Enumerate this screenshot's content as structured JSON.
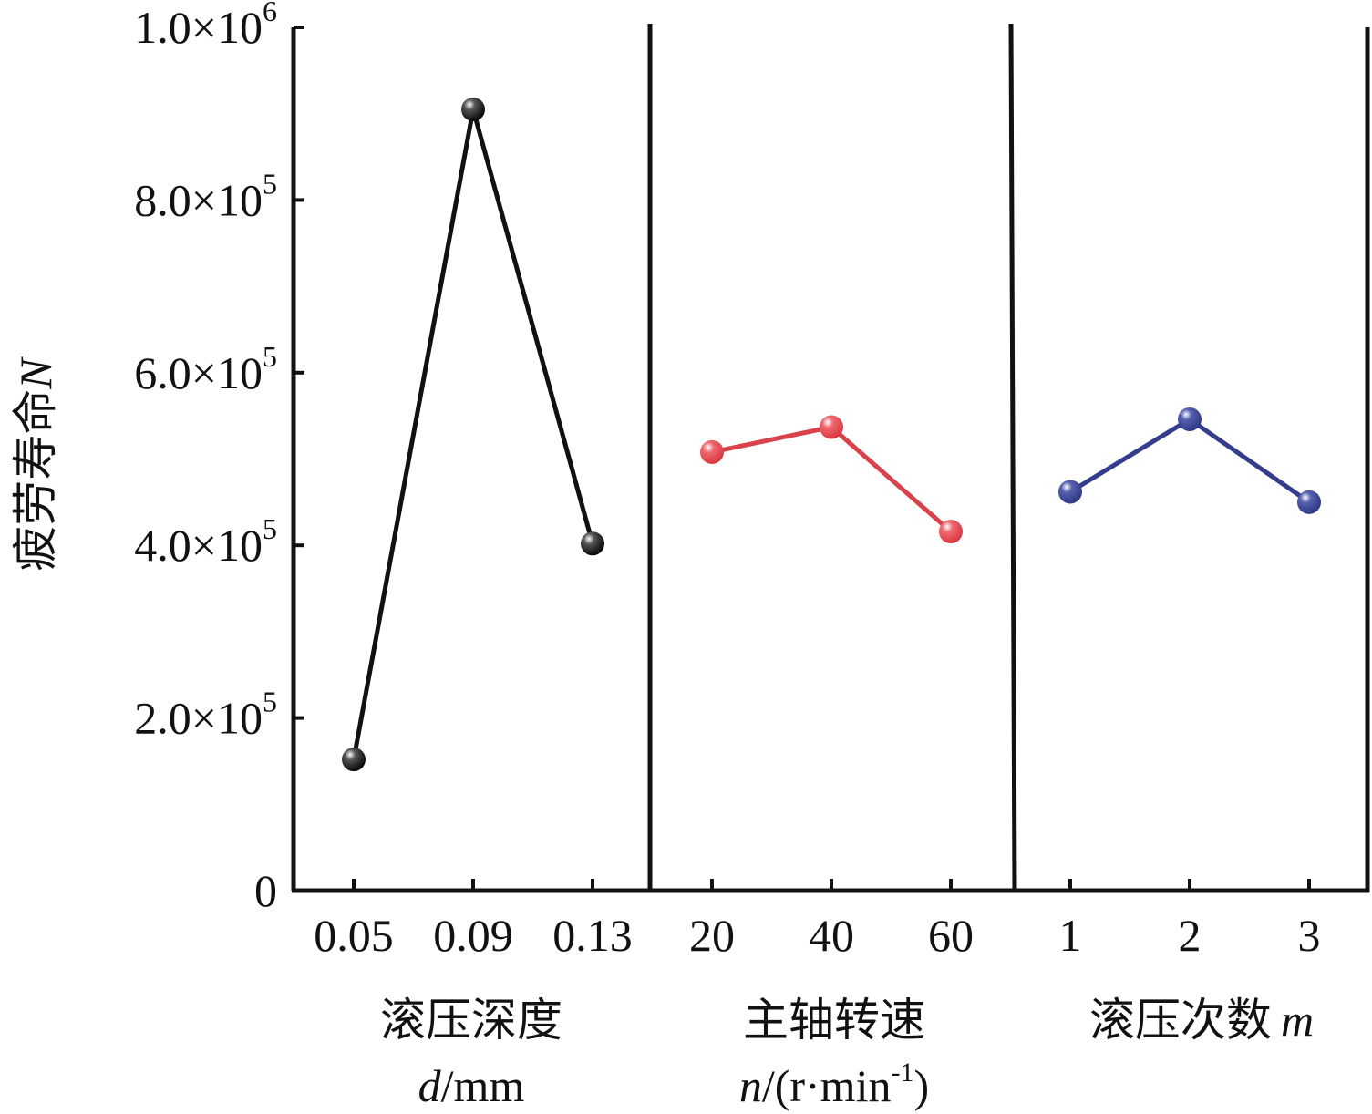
{
  "chart_data": {
    "type": "line",
    "ylabel": {
      "chinese": "疲劳寿命",
      "symbol": "N"
    },
    "ylim": [
      0,
      1000000
    ],
    "y_ticks": [
      {
        "value": 0,
        "mantissa": "0",
        "exponent": ""
      },
      {
        "value": 200000,
        "mantissa": "2.0×10",
        "exponent": "5"
      },
      {
        "value": 400000,
        "mantissa": "4.0×10",
        "exponent": "5"
      },
      {
        "value": 600000,
        "mantissa": "6.0×10",
        "exponent": "5"
      },
      {
        "value": 800000,
        "mantissa": "8.0×10",
        "exponent": "5"
      },
      {
        "value": 1000000,
        "mantissa": "1.0×10",
        "exponent": "6"
      }
    ],
    "panels": [
      {
        "categories": [
          "0.05",
          "0.09",
          "0.13"
        ],
        "values": [
          152000,
          905000,
          402000
        ],
        "color": "#111111",
        "xlabel_line1": "滚压深度",
        "xlabel_line2_symbol": "d",
        "xlabel_line2_rest": "/mm",
        "xlabel_line2_sup": "",
        "xlabel_line2_end": ""
      },
      {
        "categories": [
          "20",
          "40",
          "60"
        ],
        "values": [
          508000,
          537000,
          416000
        ],
        "color": "#d9424a",
        "xlabel_line1": "主轴转速",
        "xlabel_line2_symbol": "n",
        "xlabel_line2_rest": "/(r·min",
        "xlabel_line2_sup": "-1",
        "xlabel_line2_end": ")"
      },
      {
        "categories": [
          "1",
          "2",
          "3"
        ],
        "values": [
          462000,
          546000,
          450000
        ],
        "color": "#333d8c",
        "xlabel_line1": "滚压次数",
        "xlabel_line2_symbol": "m",
        "xlabel_line2_rest": "",
        "xlabel_line2_sup": "",
        "xlabel_line2_end": ""
      }
    ],
    "grid": false,
    "legend": "none"
  }
}
